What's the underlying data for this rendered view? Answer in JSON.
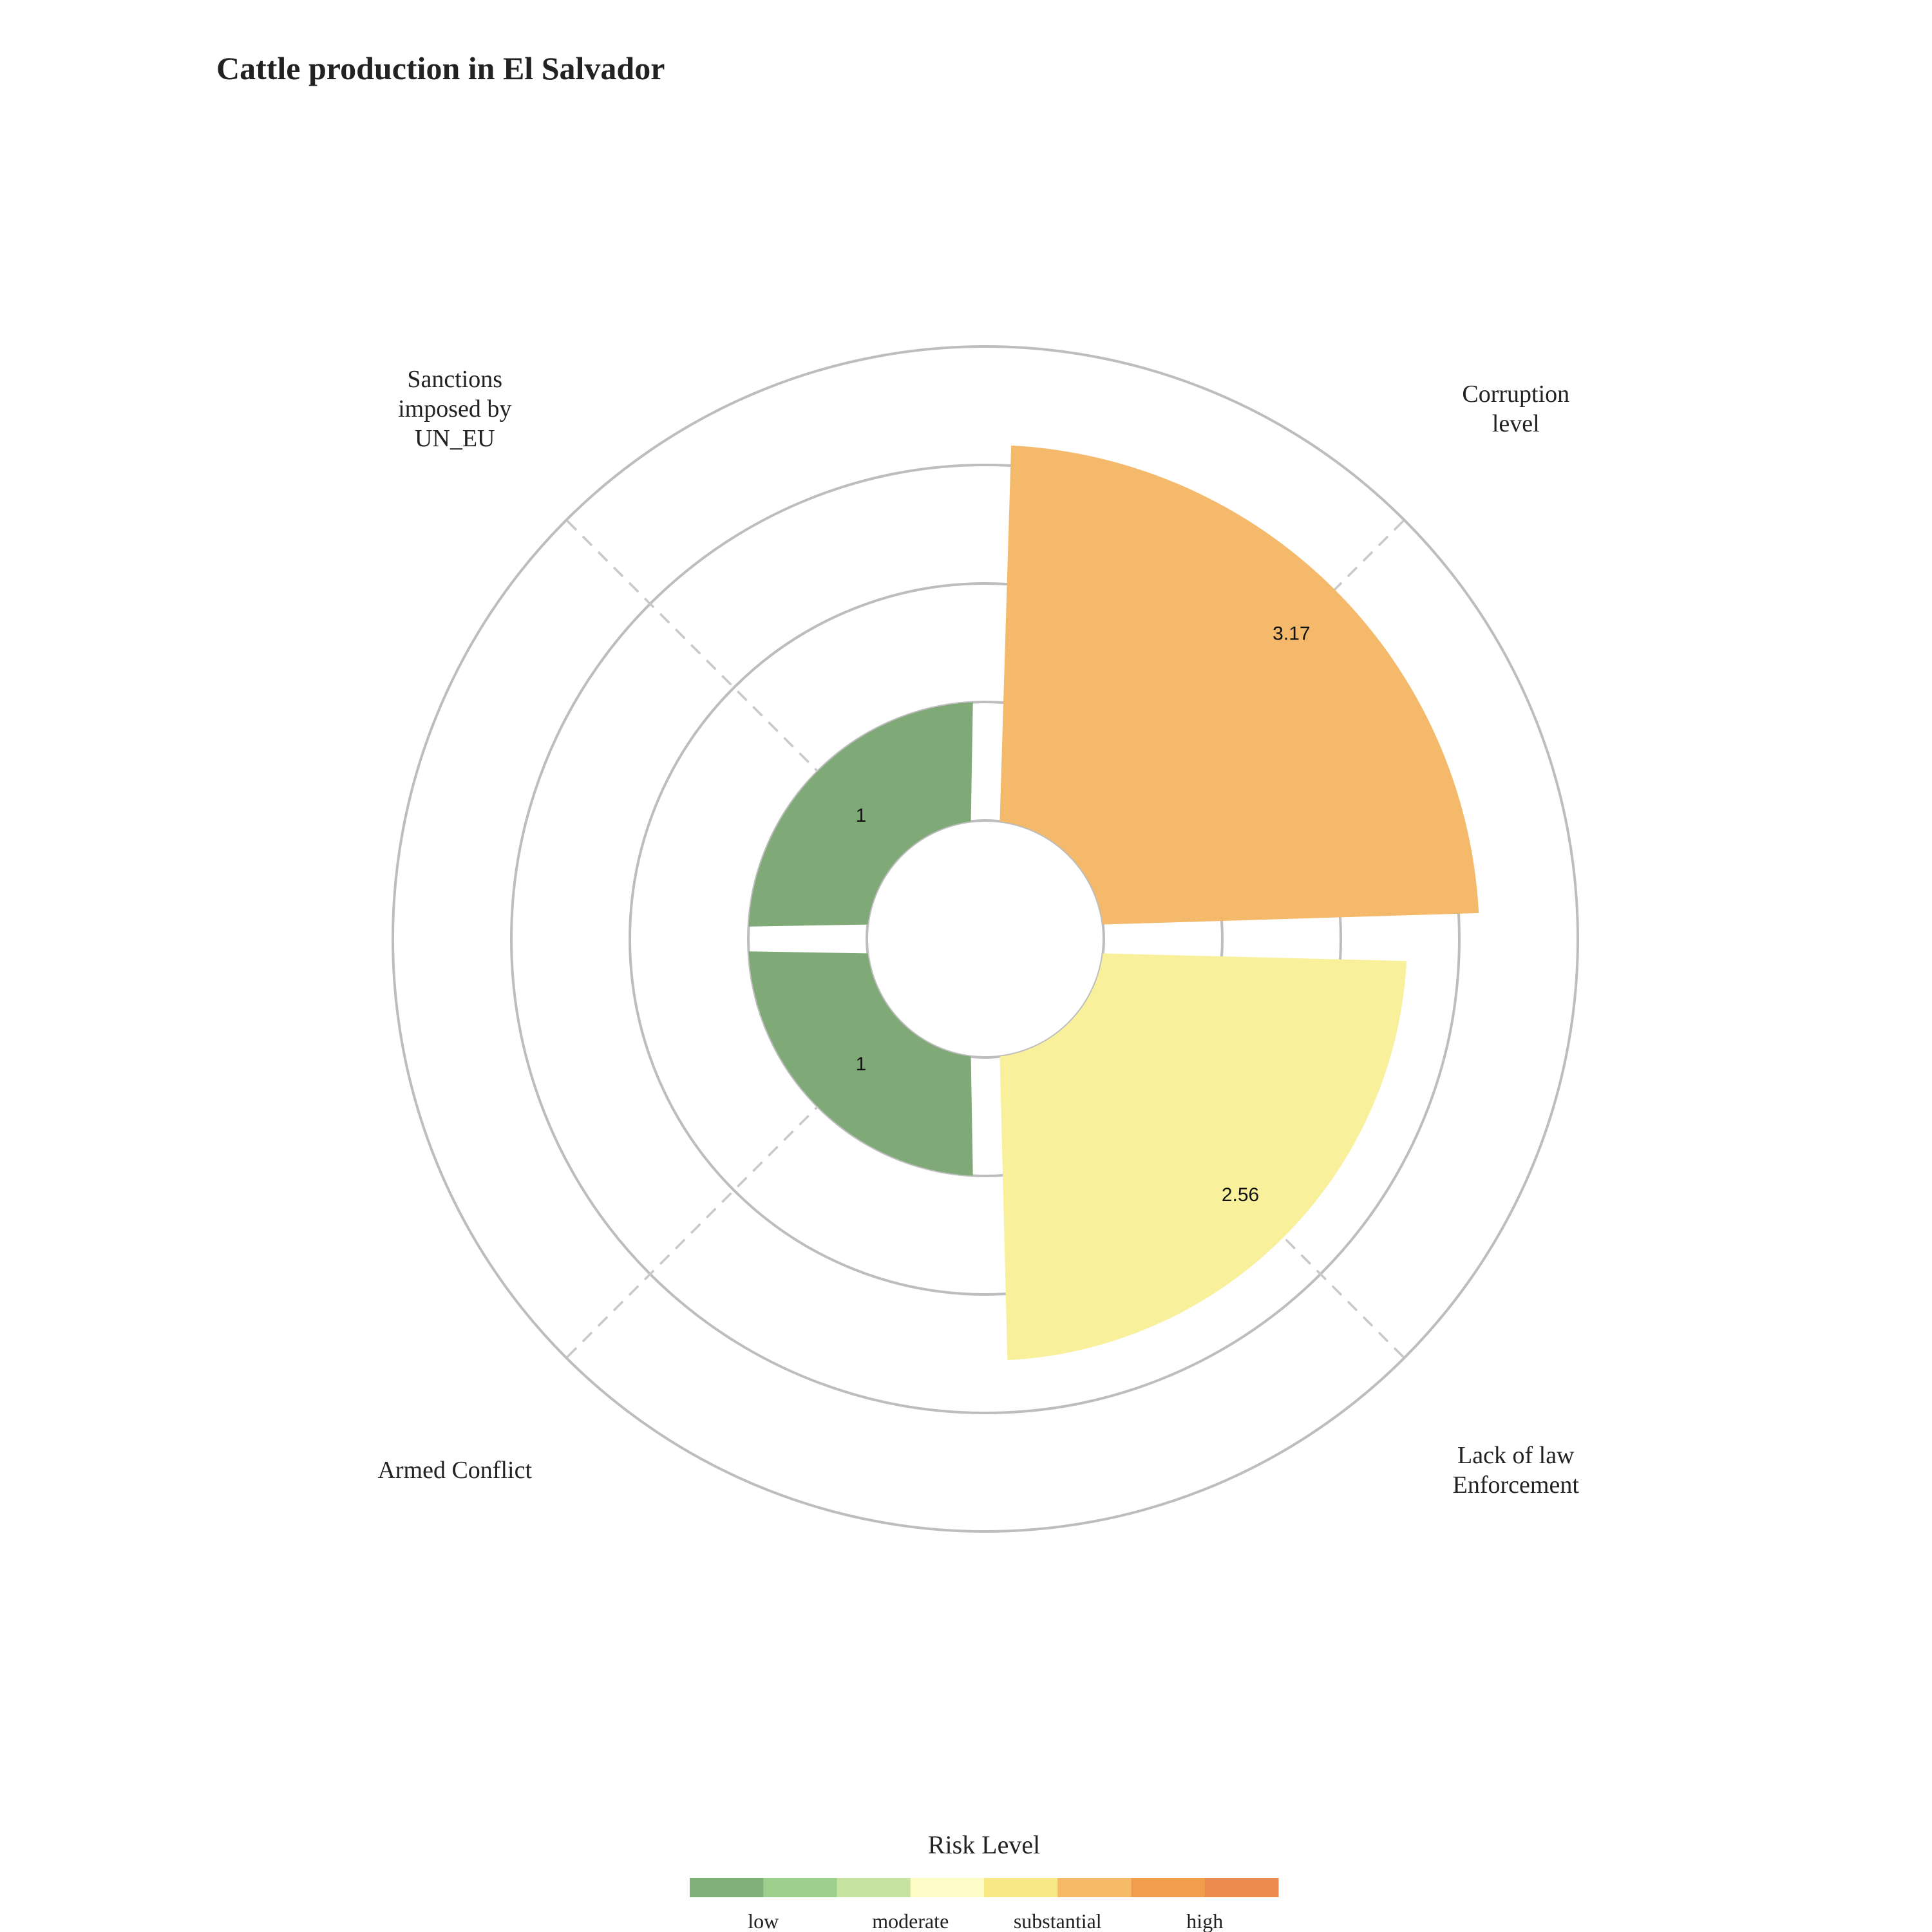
{
  "chart_data": {
    "type": "polar-bar",
    "title": "Cattle production in El Salvador",
    "categories": [
      {
        "label": [
          "Corruption",
          "level"
        ],
        "value": 3.17,
        "value_label": "3.17",
        "color": "#f4b96a"
      },
      {
        "label": [
          "Lack of law",
          "Enforcement"
        ],
        "value": 2.56,
        "value_label": "2.56",
        "color": "#f9f09c"
      },
      {
        "label": [
          "Armed Conflict"
        ],
        "value": 1,
        "value_label": "1",
        "color": "#7fa977"
      },
      {
        "label": [
          "Sanctions",
          "imposed by",
          "UN_EU"
        ],
        "value": 1,
        "value_label": "1",
        "color": "#7fa977"
      }
    ],
    "radial_range": [
      -1,
      4
    ],
    "grid_rings": [
      0,
      1,
      2,
      3,
      4
    ],
    "legend": {
      "title": "Risk Level",
      "position": "bottom",
      "colors": [
        "#7fb077",
        "#9dd08c",
        "#c7e3a1",
        "#fefcc6",
        "#f6e882",
        "#f5bb67",
        "#f29d4b",
        "#ec8a4e"
      ],
      "labels": [
        "low",
        "moderate",
        "substantial",
        "high"
      ]
    }
  }
}
